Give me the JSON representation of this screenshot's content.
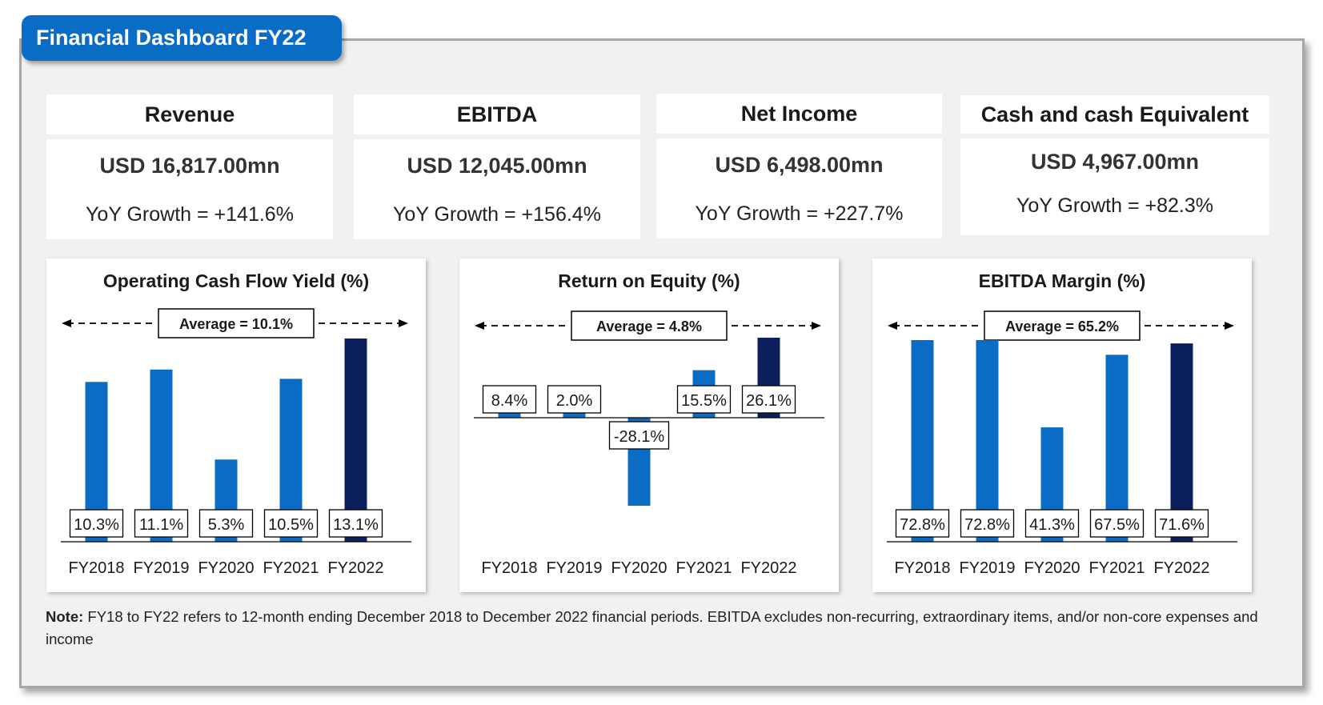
{
  "title": "Financial Dashboard FY22",
  "kpis": [
    {
      "label": "Revenue",
      "value": "USD 16,817.00mn",
      "growth": "YoY Growth = +141.6%"
    },
    {
      "label": "EBITDA",
      "value": "USD 12,045.00mn",
      "growth": "YoY Growth = +156.4%"
    },
    {
      "label": "Net Income",
      "value": "USD 6,498.00mn",
      "growth": "YoY Growth = +227.7%"
    },
    {
      "label": "Cash and cash Equivalent",
      "value": "USD 4,967.00mn",
      "growth": "YoY Growth = +82.3%"
    }
  ],
  "colors": {
    "bar": "#0a6cc5",
    "bar_highlight": "#0b1f5c",
    "title_bg": "#0a6cc5"
  },
  "chart_data": [
    {
      "type": "bar",
      "title": "Operating Cash Flow Yield (%)",
      "categories": [
        "FY2018",
        "FY2019",
        "FY2020",
        "FY2021",
        "FY2022"
      ],
      "values": [
        10.3,
        11.1,
        5.3,
        10.5,
        13.1
      ],
      "labels": [
        "10.3%",
        "11.1%",
        "5.3%",
        "10.5%",
        "13.1%"
      ],
      "average_label": "Average = 10.1%",
      "ylim": [
        0,
        13.1
      ]
    },
    {
      "type": "bar",
      "title": "Return on Equity (%)",
      "categories": [
        "FY2018",
        "FY2019",
        "FY2020",
        "FY2021",
        "FY2022"
      ],
      "values": [
        8.4,
        2.0,
        -28.1,
        15.5,
        26.1
      ],
      "labels": [
        "8.4%",
        "2.0%",
        "-28.1%",
        "15.5%",
        "26.1%"
      ],
      "average_label": "Average = 4.8%",
      "ylim": [
        -28.1,
        26.1
      ]
    },
    {
      "type": "bar",
      "title": "EBITDA Margin (%)",
      "categories": [
        "FY2018",
        "FY2019",
        "FY2020",
        "FY2021",
        "FY2022"
      ],
      "values": [
        72.8,
        72.8,
        41.3,
        67.5,
        71.6
      ],
      "labels": [
        "72.8%",
        "72.8%",
        "41.3%",
        "67.5%",
        "71.6%"
      ],
      "average_label": "Average = 65.2%",
      "ylim": [
        0,
        72.8
      ]
    }
  ],
  "note": {
    "label": "Note:",
    "text": " FY18 to FY22 refers to 12-month ending  December 2018 to December 2022 financial periods. EBITDA excludes non-recurring, extraordinary items, and/or non-core expenses and income"
  }
}
